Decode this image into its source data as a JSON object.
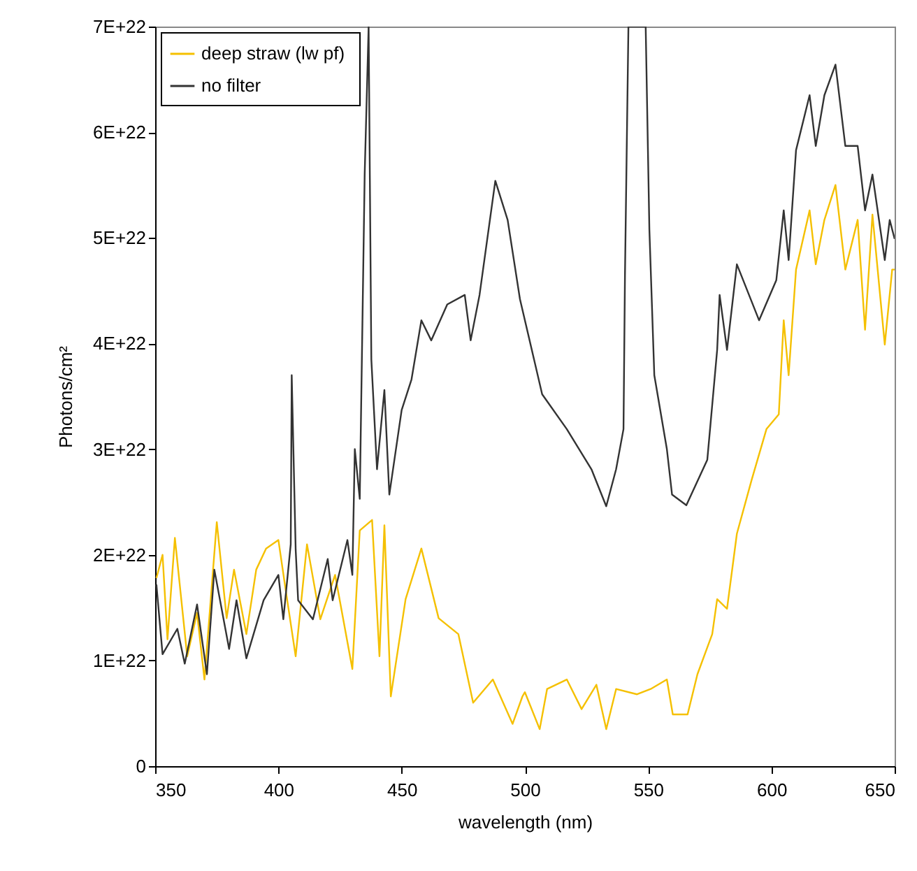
{
  "chart_data": {
    "type": "line",
    "xlabel": "wavelength (nm)",
    "ylabel": "Photons/cm²",
    "xlim": [
      350,
      650
    ],
    "ylim": [
      0,
      7e+22
    ],
    "xticks": [
      350,
      400,
      450,
      500,
      550,
      600,
      650
    ],
    "yticks": [
      0,
      {
        "value": 1e+22,
        "label": "1E+22"
      },
      {
        "value": 2e+22,
        "label": "2E+22"
      },
      {
        "value": 3e+22,
        "label": "3E+22"
      },
      {
        "value": 4e+22,
        "label": "4E+22"
      },
      {
        "value": 5e+22,
        "label": "5E+22"
      },
      {
        "value": 6e+22,
        "label": "6E+22"
      },
      {
        "value": 7e+22,
        "label": "7E+22"
      }
    ],
    "grid": false,
    "legend": "top left",
    "line_style": "solid",
    "series": [
      {
        "name": "deep straw  (lw pf)",
        "color": "#f5c000",
        "x": [
          350.5,
          353,
          355,
          358,
          363,
          367,
          370,
          375,
          379,
          382,
          387,
          391,
          395,
          400,
          403,
          407,
          411.6,
          417,
          423,
          430,
          433,
          438,
          441,
          443,
          445.6,
          451.6,
          458,
          465,
          473,
          479,
          487,
          495,
          499,
          500,
          506,
          509,
          517,
          523,
          529,
          533,
          537,
          545.5,
          551,
          557.6,
          560,
          566,
          570,
          576,
          578,
          582,
          586,
          592,
          598,
          603,
          605,
          607,
          610,
          615.5,
          618,
          621.5,
          626,
          630,
          635,
          638,
          641,
          646,
          649,
          650
        ],
        "values": [
          1.78e+22,
          2e+22,
          1.2e+22,
          2.16e+22,
          1.04e+22,
          1.45e+22,
          8.2e+21,
          2.31e+22,
          1.4e+22,
          1.86e+22,
          1.25e+22,
          1.86e+22,
          2.06e+22,
          2.14e+22,
          1.66e+22,
          1.04e+22,
          2.1e+22,
          1.39e+22,
          1.81e+22,
          9.2e+21,
          2.23e+22,
          2.33e+22,
          1.04e+22,
          2.28e+22,
          6.6e+21,
          1.58e+22,
          2.06e+22,
          1.4e+22,
          1.25e+22,
          6e+21,
          8.2e+21,
          4e+21,
          6.6e+21,
          7e+21,
          3.5e+21,
          7.3e+21,
          8.2e+21,
          5.4e+21,
          7.7e+21,
          3.5e+21,
          7.3e+21,
          6.8e+21,
          7.3e+21,
          8.2e+21,
          4.9e+21,
          4.9e+21,
          8.7e+21,
          1.25e+22,
          1.58e+22,
          1.49e+22,
          2.2e+22,
          2.71e+22,
          3.19e+22,
          3.33e+22,
          4.22e+22,
          3.7e+22,
          4.7e+22,
          5.26e+22,
          4.75e+22,
          5.17e+22,
          5.5e+22,
          4.7e+22,
          5.17e+22,
          4.13e+22,
          5.22e+22,
          3.99e+22,
          4.7e+22,
          4.7e+22
        ]
      },
      {
        "name": "no filter",
        "color": "#333333",
        "x": [
          350.5,
          353,
          359,
          362,
          367,
          371,
          374,
          380,
          383,
          387,
          394,
          400,
          402,
          405,
          405.4,
          407,
          408,
          414,
          420,
          422,
          428,
          430,
          431,
          433,
          435,
          436.6,
          437.7,
          440,
          443,
          445,
          450,
          454,
          458,
          462,
          468.5,
          475.6,
          478,
          481.6,
          488,
          493,
          498,
          507,
          517,
          527,
          533,
          537,
          540,
          540.6,
          542,
          549,
          550.5,
          552.5,
          557.6,
          559.7,
          565.5,
          574,
          578,
          579,
          582,
          586,
          595,
          602,
          605,
          607,
          610,
          615.5,
          618,
          621.5,
          626,
          630,
          635,
          638,
          641,
          646,
          648,
          650
        ],
        "values": [
          1.72e+22,
          1.06e+22,
          1.3e+22,
          9.7e+21,
          1.53e+22,
          8.7e+21,
          1.86e+22,
          1.11e+22,
          1.57e+22,
          1.02e+22,
          1.57e+22,
          1.81e+22,
          1.39e+22,
          2.1e+22,
          3.7e+22,
          2.05e+22,
          1.57e+22,
          1.39e+22,
          1.96e+22,
          1.57e+22,
          2.14e+22,
          1.81e+22,
          3e+22,
          2.53e+22,
          5.6e+22,
          7e+22,
          3.85e+22,
          2.81e+22,
          3.56e+22,
          2.57e+22,
          3.37e+22,
          3.66e+22,
          4.22e+22,
          4.03e+22,
          4.37e+22,
          4.46e+22,
          4.03e+22,
          4.46e+22,
          5.54e+22,
          5.17e+22,
          4.42e+22,
          3.52e+22,
          3.19e+22,
          2.81e+22,
          2.46e+22,
          2.81e+22,
          3.19e+22,
          4.65e+22,
          7e+22,
          7e+22,
          5.08e+22,
          3.7e+22,
          3e+22,
          2.57e+22,
          2.47e+22,
          2.9e+22,
          3.94e+22,
          4.46e+22,
          3.94e+22,
          4.75e+22,
          4.22e+22,
          4.6e+22,
          5.26e+22,
          4.79e+22,
          5.83e+22,
          6.35e+22,
          5.87e+22,
          6.35e+22,
          6.64e+22,
          5.87e+22,
          5.87e+22,
          5.26e+22,
          5.6e+22,
          4.79e+22,
          5.17e+22,
          4.99e+22
        ]
      }
    ]
  }
}
